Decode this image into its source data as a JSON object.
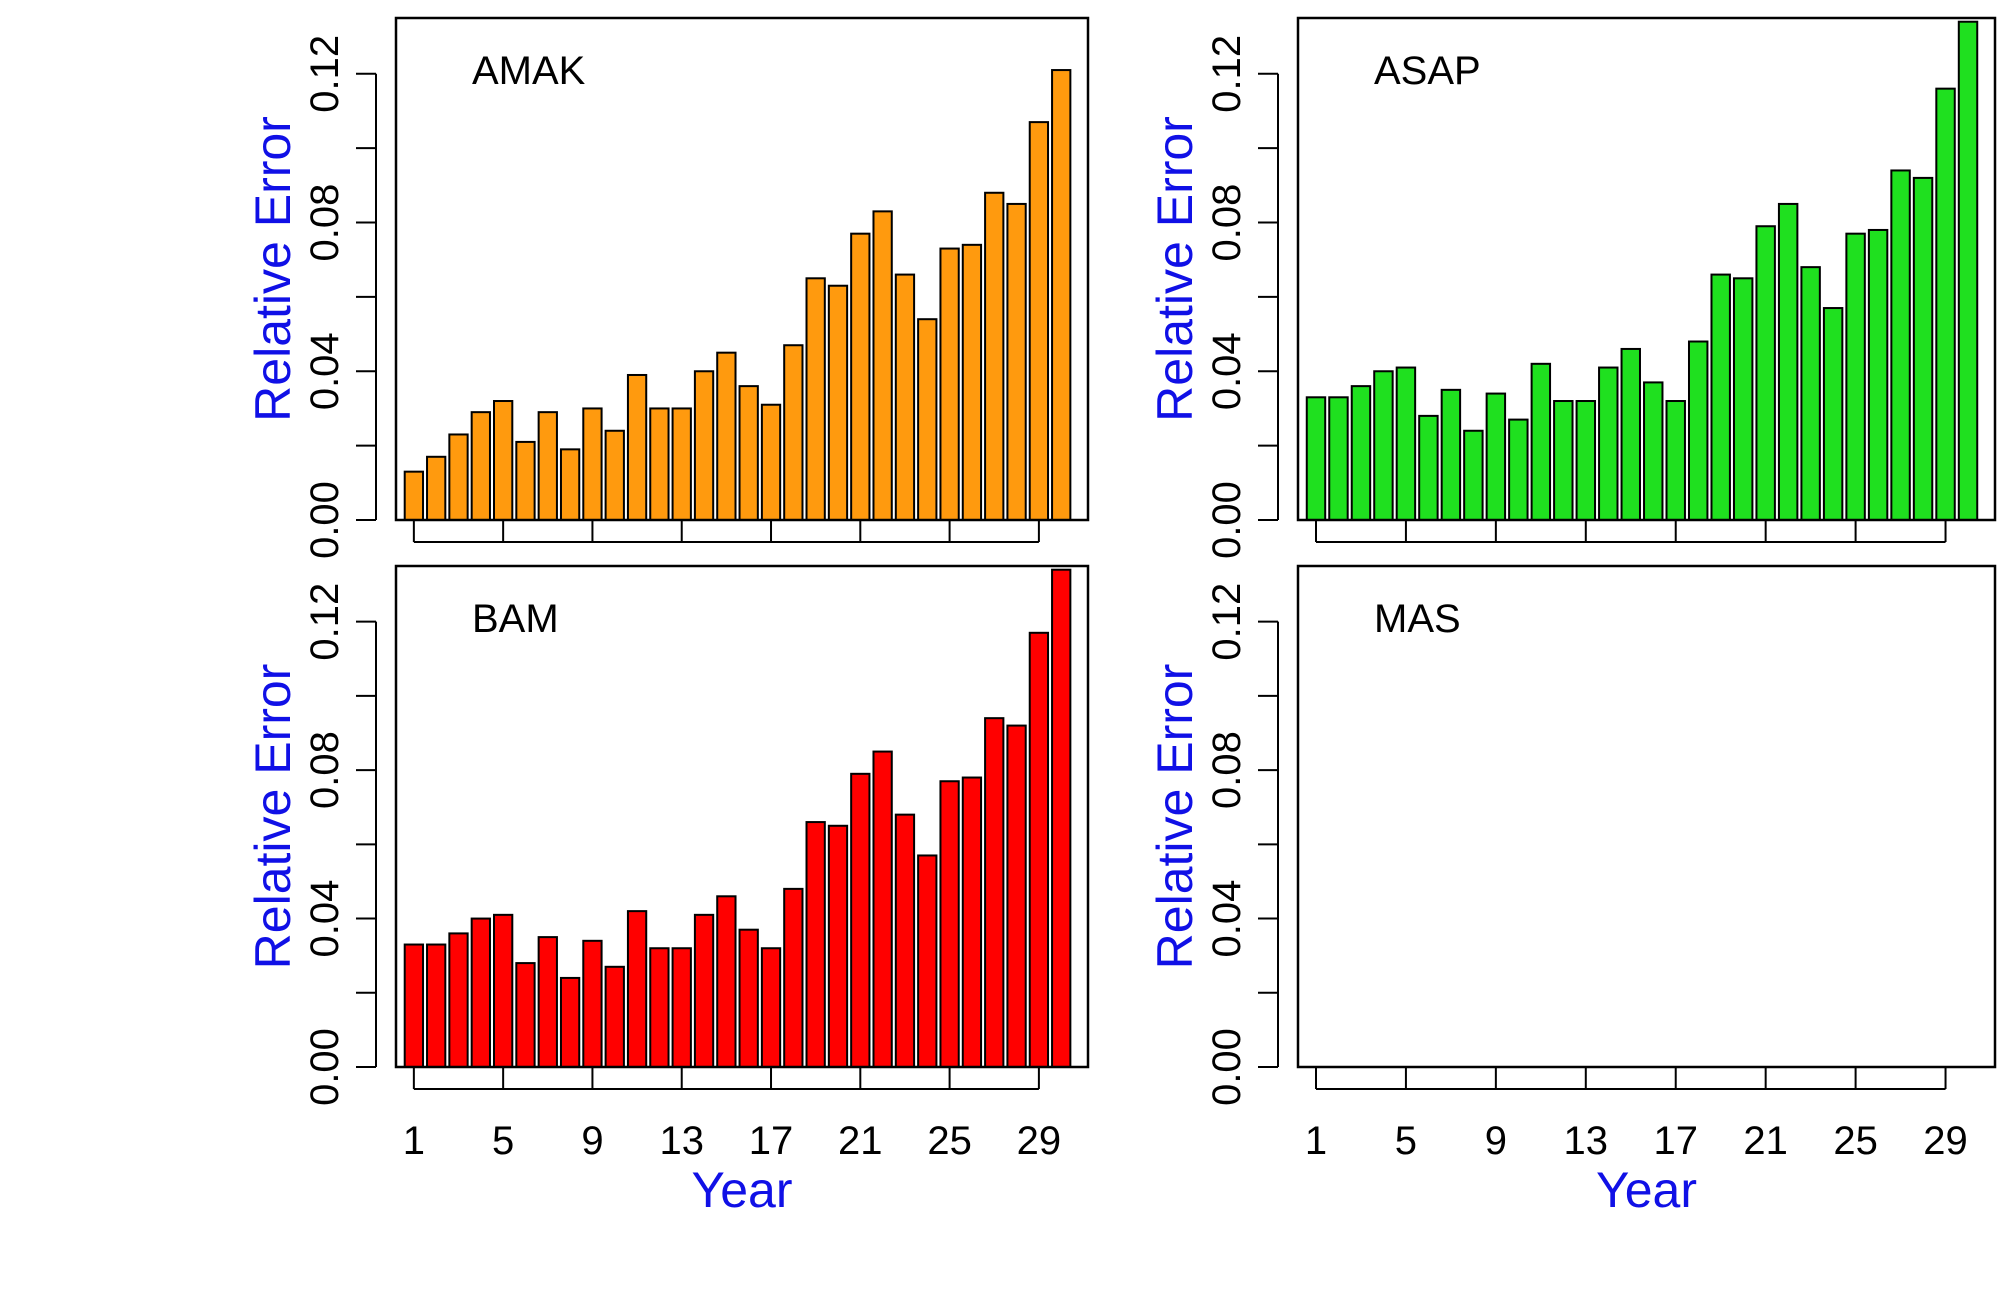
{
  "chart_data": [
    {
      "type": "bar",
      "panel_label": "AMAK",
      "ylabel": "Relative Error",
      "xlabel": "",
      "x": [
        1,
        2,
        3,
        4,
        5,
        6,
        7,
        8,
        9,
        10,
        11,
        12,
        13,
        14,
        15,
        16,
        17,
        18,
        19,
        20,
        21,
        22,
        23,
        24,
        25,
        26,
        27,
        28,
        29,
        30
      ],
      "values": [
        0.013,
        0.017,
        0.023,
        0.029,
        0.032,
        0.021,
        0.029,
        0.019,
        0.03,
        0.024,
        0.039,
        0.03,
        0.03,
        0.04,
        0.045,
        0.036,
        0.031,
        0.047,
        0.065,
        0.063,
        0.077,
        0.083,
        0.066,
        0.054,
        0.073,
        0.074,
        0.088,
        0.085,
        0.107,
        0.121
      ],
      "bar_color": "#ff9a0e",
      "ylim": [
        0,
        0.135
      ],
      "yticks": [
        "0.00",
        "0.04",
        "0.08",
        "0.12"
      ],
      "xticks": [
        "1",
        "5",
        "9",
        "13",
        "17",
        "21",
        "25",
        "29"
      ]
    },
    {
      "type": "bar",
      "panel_label": "ASAP",
      "ylabel": "Relative Error",
      "xlabel": "",
      "x": [
        1,
        2,
        3,
        4,
        5,
        6,
        7,
        8,
        9,
        10,
        11,
        12,
        13,
        14,
        15,
        16,
        17,
        18,
        19,
        20,
        21,
        22,
        23,
        24,
        25,
        26,
        27,
        28,
        29,
        30
      ],
      "values": [
        0.033,
        0.033,
        0.036,
        0.04,
        0.041,
        0.028,
        0.035,
        0.024,
        0.034,
        0.027,
        0.042,
        0.032,
        0.032,
        0.041,
        0.046,
        0.037,
        0.032,
        0.048,
        0.066,
        0.065,
        0.079,
        0.085,
        0.068,
        0.057,
        0.077,
        0.078,
        0.094,
        0.092,
        0.116,
        0.134
      ],
      "bar_color": "#1fe01f",
      "ylim": [
        0,
        0.135
      ],
      "yticks": [
        "0.00",
        "0.04",
        "0.08",
        "0.12"
      ],
      "xticks": [
        "1",
        "5",
        "9",
        "13",
        "17",
        "21",
        "25",
        "29"
      ]
    },
    {
      "type": "bar",
      "panel_label": "BAM",
      "ylabel": "Relative Error",
      "xlabel": "Year",
      "x": [
        1,
        2,
        3,
        4,
        5,
        6,
        7,
        8,
        9,
        10,
        11,
        12,
        13,
        14,
        15,
        16,
        17,
        18,
        19,
        20,
        21,
        22,
        23,
        24,
        25,
        26,
        27,
        28,
        29,
        30
      ],
      "values": [
        0.033,
        0.033,
        0.036,
        0.04,
        0.041,
        0.028,
        0.035,
        0.024,
        0.034,
        0.027,
        0.042,
        0.032,
        0.032,
        0.041,
        0.046,
        0.037,
        0.032,
        0.048,
        0.066,
        0.065,
        0.079,
        0.085,
        0.068,
        0.057,
        0.077,
        0.078,
        0.094,
        0.092,
        0.117,
        0.134
      ],
      "bar_color": "#ff0000",
      "ylim": [
        0,
        0.135
      ],
      "yticks": [
        "0.00",
        "0.04",
        "0.08",
        "0.12"
      ],
      "xticks": [
        "1",
        "5",
        "9",
        "13",
        "17",
        "21",
        "25",
        "29"
      ]
    },
    {
      "type": "bar",
      "panel_label": "MAS",
      "ylabel": "Relative Error",
      "xlabel": "Year",
      "x": [
        1,
        2,
        3,
        4,
        5,
        6,
        7,
        8,
        9,
        10,
        11,
        12,
        13,
        14,
        15,
        16,
        17,
        18,
        19,
        20,
        21,
        22,
        23,
        24,
        25,
        26,
        27,
        28,
        29,
        30
      ],
      "values": [
        0,
        0,
        0,
        0,
        0,
        0,
        0,
        0,
        0,
        0,
        0,
        0,
        0,
        0,
        0,
        0,
        0,
        0,
        0,
        0,
        0,
        0,
        0,
        0,
        0,
        0,
        0,
        0,
        0,
        0
      ],
      "bar_color": "#ffffff",
      "ylim": [
        0,
        0.135
      ],
      "yticks": [
        "0.00",
        "0.04",
        "0.08",
        "0.12"
      ],
      "xticks": [
        "1",
        "5",
        "9",
        "13",
        "17",
        "21",
        "25",
        "29"
      ]
    }
  ],
  "colors": {
    "axis_title": "#1010e6",
    "bar_outline": "#000000",
    "axes": "#000000"
  }
}
